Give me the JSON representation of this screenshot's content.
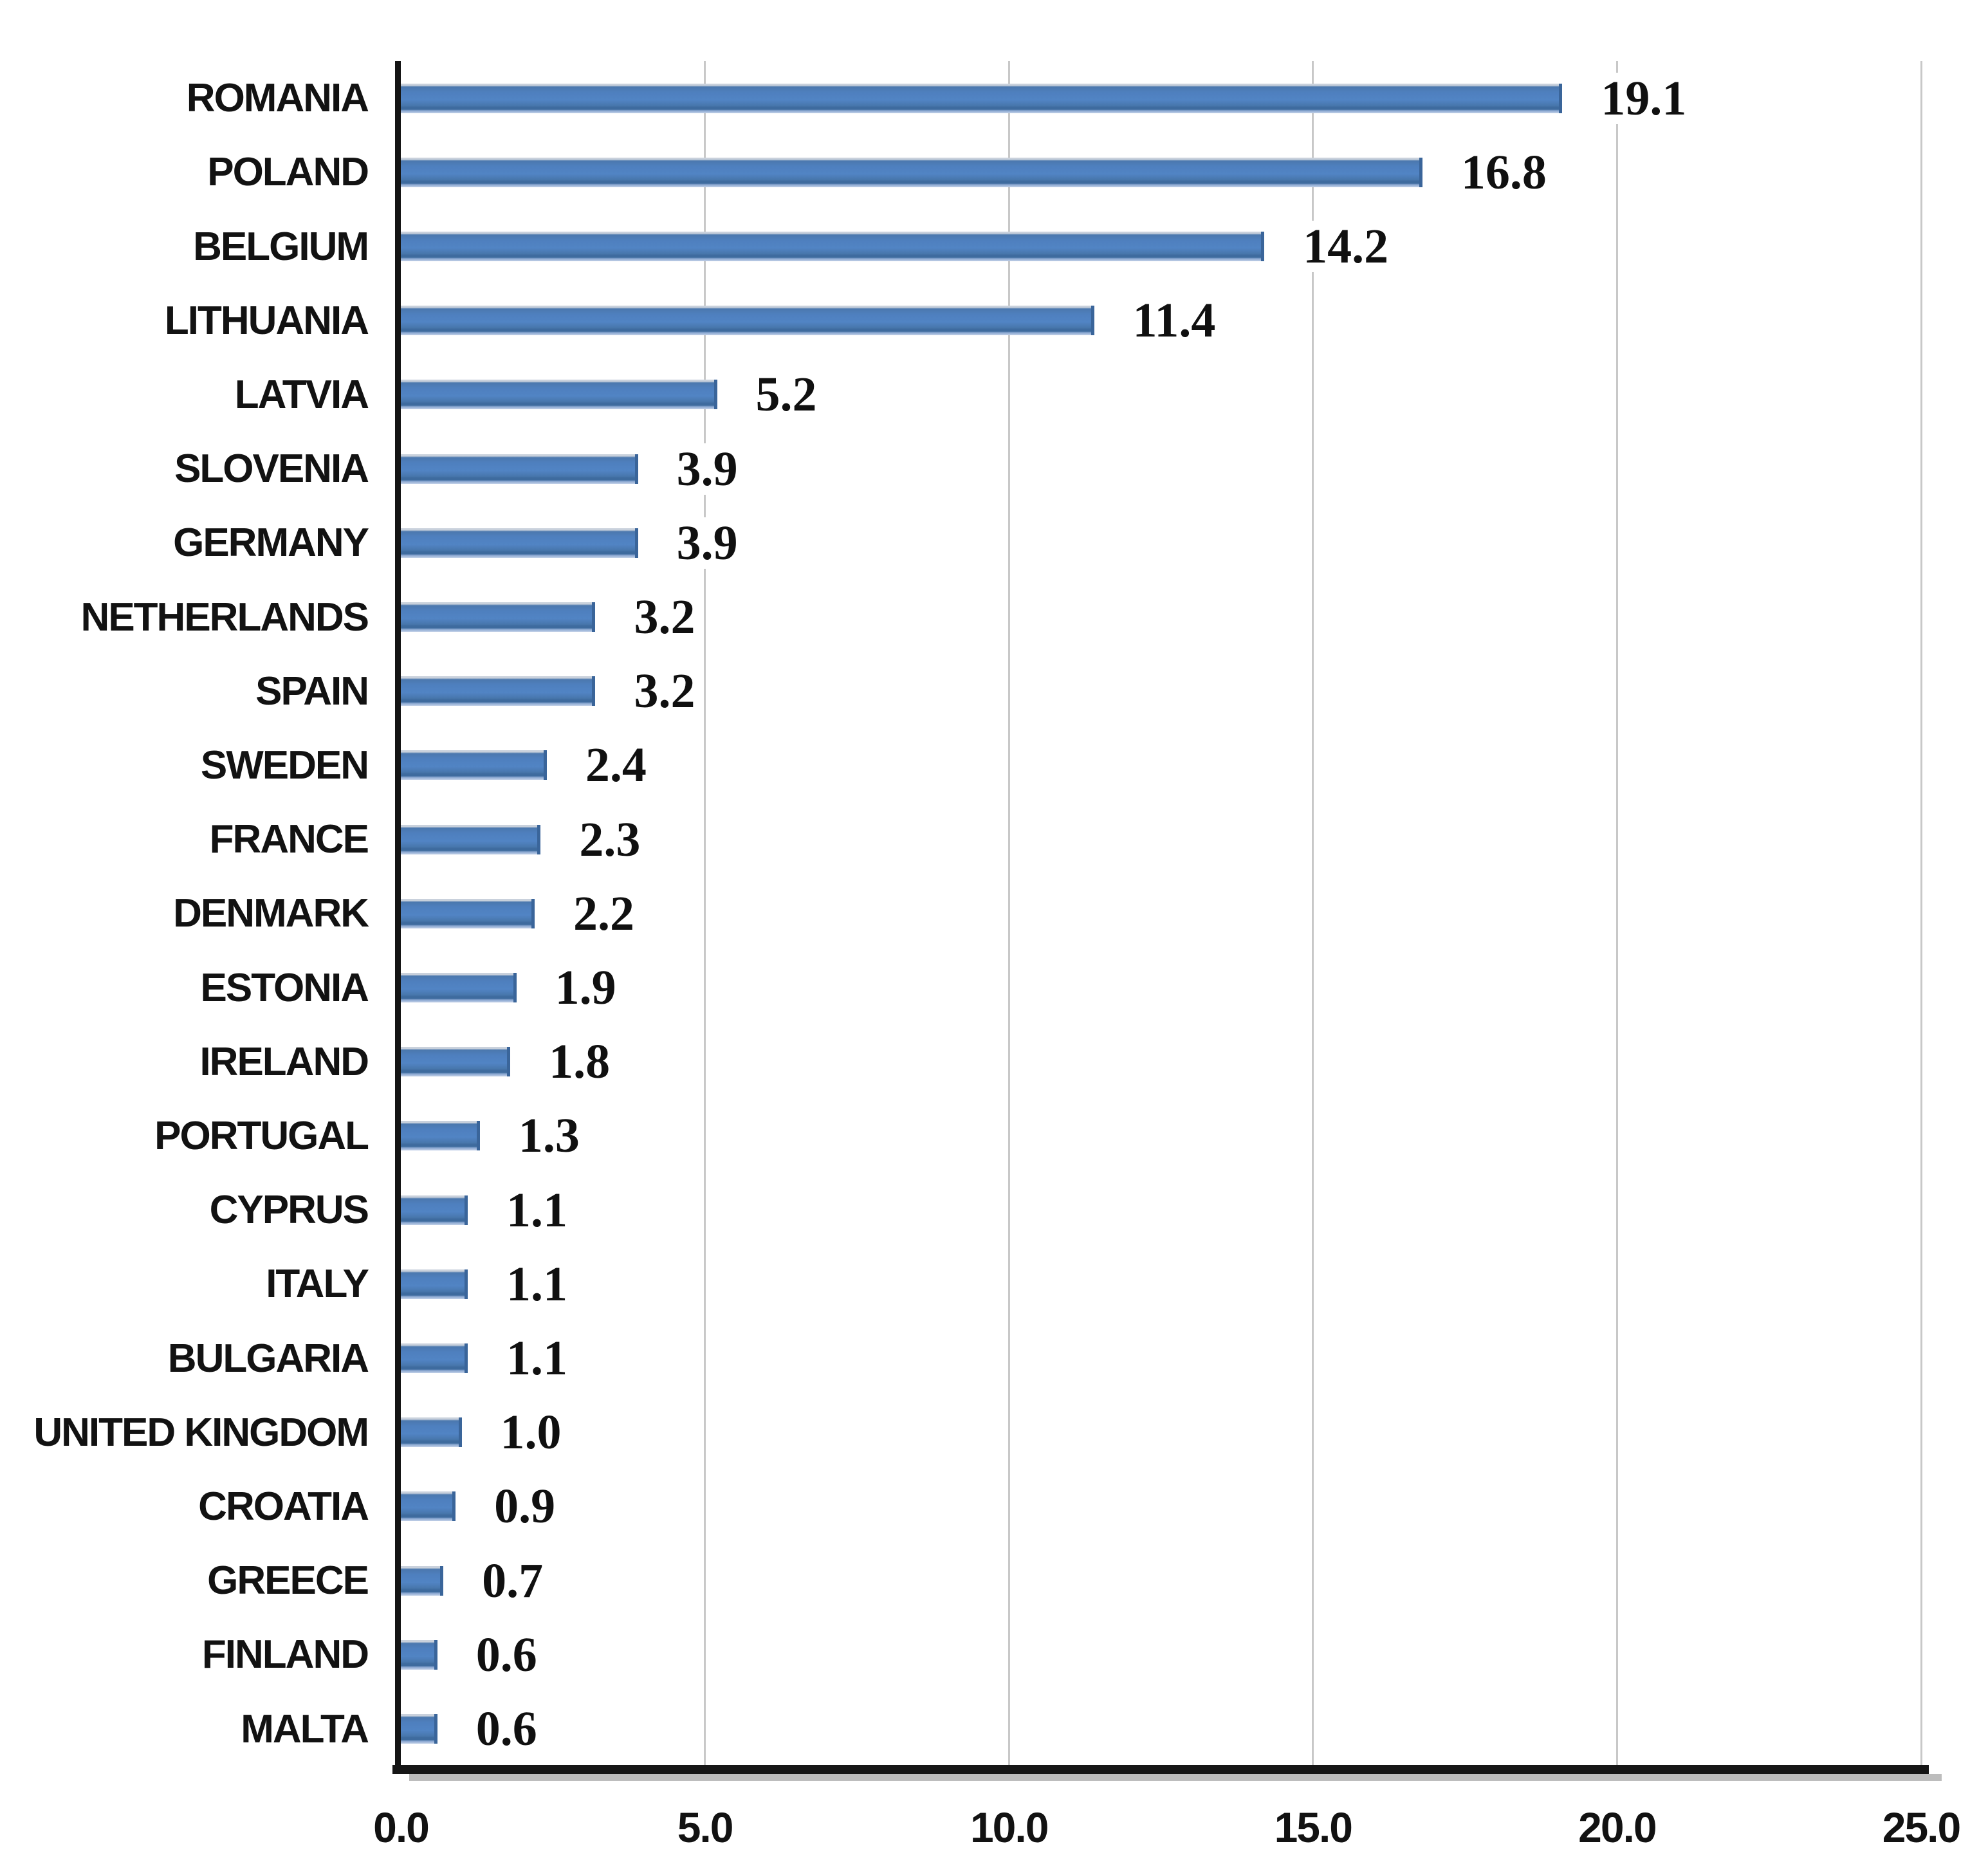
{
  "chart_data": {
    "type": "bar",
    "orientation": "horizontal",
    "title": "",
    "xlabel": "",
    "ylabel": "",
    "categories": [
      "ROMANIA",
      "POLAND",
      "BELGIUM",
      "LITHUANIA",
      "LATVIA",
      "SLOVENIA",
      "GERMANY",
      "NETHERLANDS",
      "SPAIN",
      "SWEDEN",
      "FRANCE",
      "DENMARK",
      "ESTONIA",
      "IRELAND",
      "PORTUGAL",
      "CYPRUS",
      "ITALY",
      "BULGARIA",
      "UNITED KINGDOM",
      "CROATIA",
      "GREECE",
      "FINLAND",
      "MALTA"
    ],
    "values": [
      19.1,
      16.8,
      14.2,
      11.4,
      5.2,
      3.9,
      3.9,
      3.2,
      3.2,
      2.4,
      2.3,
      2.2,
      1.9,
      1.8,
      1.3,
      1.1,
      1.1,
      1.1,
      1.0,
      0.9,
      0.7,
      0.6,
      0.6
    ],
    "value_labels": [
      "19.1",
      "16.8",
      "14.2",
      "11.4",
      "5.2",
      "3.9",
      "3.9",
      "3.2",
      "3.2",
      "2.4",
      "2.3",
      "2.2",
      "1.9",
      "1.8",
      "1.3",
      "1.1",
      "1.1",
      "1.1",
      "1.0",
      "0.9",
      "0.7",
      "0.6",
      "0.6"
    ],
    "xlim": [
      0,
      25
    ],
    "x_ticks": [
      {
        "value": 0,
        "label": "0.0"
      },
      {
        "value": 5,
        "label": "5.0"
      },
      {
        "value": 10,
        "label": "10.0"
      },
      {
        "value": 15,
        "label": "15.0"
      },
      {
        "value": 20,
        "label": "20.0"
      },
      {
        "value": 25,
        "label": "25.0"
      }
    ],
    "grid": true,
    "legend_position": "none",
    "colors": {
      "bar": "#4f81bd",
      "bar_highlight": "#5184c4",
      "bar_edge": "#3e6b9e",
      "gridline": "#c8c8c8",
      "axis": "#161616",
      "axis_shadow": "#9a9a9a",
      "text": "#121212",
      "background": "#ffffff"
    }
  }
}
